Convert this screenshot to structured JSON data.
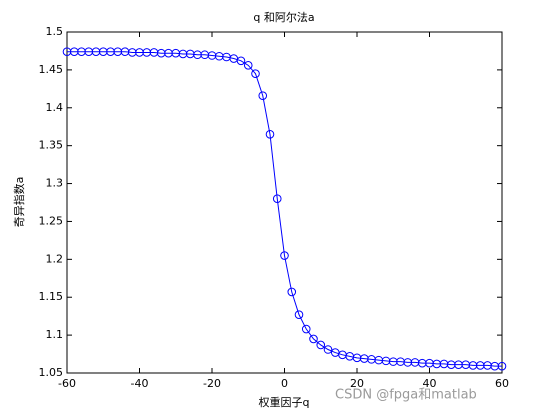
{
  "chart_data": {
    "type": "line",
    "title": "q 和阿尔法a",
    "xlabel": "权重因子q",
    "ylabel": "奇异指数a",
    "watermark": "CSDN @fpga和matlab",
    "x": [
      -60,
      -58,
      -56,
      -54,
      -52,
      -50,
      -48,
      -46,
      -44,
      -42,
      -40,
      -38,
      -36,
      -34,
      -32,
      -30,
      -28,
      -26,
      -24,
      -22,
      -20,
      -18,
      -16,
      -14,
      -12,
      -10,
      -8,
      -6,
      -4,
      -2,
      0,
      2,
      4,
      6,
      8,
      10,
      12,
      14,
      16,
      18,
      20,
      22,
      24,
      26,
      28,
      30,
      32,
      34,
      36,
      38,
      40,
      42,
      44,
      46,
      48,
      50,
      52,
      54,
      56,
      58,
      60
    ],
    "values": [
      1.474,
      1.474,
      1.474,
      1.474,
      1.474,
      1.474,
      1.474,
      1.474,
      1.474,
      1.473,
      1.473,
      1.473,
      1.473,
      1.472,
      1.472,
      1.472,
      1.471,
      1.471,
      1.47,
      1.47,
      1.469,
      1.468,
      1.467,
      1.465,
      1.462,
      1.456,
      1.445,
      1.416,
      1.365,
      1.28,
      1.205,
      1.157,
      1.127,
      1.108,
      1.095,
      1.087,
      1.081,
      1.077,
      1.074,
      1.072,
      1.07,
      1.069,
      1.068,
      1.067,
      1.066,
      1.065,
      1.065,
      1.064,
      1.064,
      1.063,
      1.063,
      1.062,
      1.062,
      1.061,
      1.061,
      1.061,
      1.06,
      1.06,
      1.06,
      1.059,
      1.059
    ],
    "color": "#0000ff",
    "marker": "circle",
    "xlim": [
      -60,
      60
    ],
    "xticks": [
      -60,
      -40,
      -20,
      0,
      20,
      40,
      60
    ],
    "ylim": [
      1.05,
      1.5
    ],
    "yticks": [
      1.05,
      1.1,
      1.15,
      1.2,
      1.25,
      1.3,
      1.35,
      1.4,
      1.45,
      1.5
    ],
    "grid": false
  }
}
